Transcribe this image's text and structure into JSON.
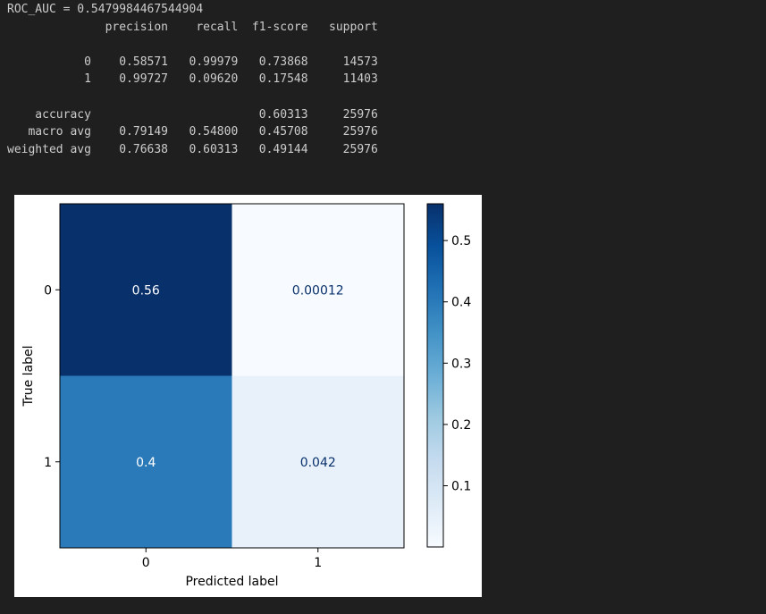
{
  "output": {
    "roc_line": "ROC_AUC = 0.5479984467544904",
    "report_lines": [
      "              precision    recall  f1-score   support",
      "",
      "           0    0.58571   0.99979   0.73868     14573",
      "           1    0.99727   0.09620   0.17548     11403",
      "",
      "    accuracy                        0.60313     25976",
      "   macro avg    0.79149   0.54800   0.45708     25976",
      "weighted avg    0.76638   0.60313   0.49144     25976"
    ]
  },
  "chart_data": {
    "type": "heatmap",
    "colormap": "Blues",
    "x_categories": [
      "0",
      "1"
    ],
    "y_categories": [
      "0",
      "1"
    ],
    "values": [
      [
        0.56,
        0.00012
      ],
      [
        0.4,
        0.042
      ]
    ],
    "cell_labels": [
      [
        "0.56",
        "0.00012"
      ],
      [
        "0.4",
        "0.042"
      ]
    ],
    "xlabel": "Predicted label",
    "ylabel": "True label",
    "colorbar": {
      "ticks": [
        0.1,
        0.2,
        0.3,
        0.4,
        0.5
      ],
      "tick_labels": [
        "0.1",
        "0.2",
        "0.3",
        "0.4",
        "0.5"
      ],
      "range": [
        0.00012,
        0.56
      ]
    },
    "grid": false
  }
}
